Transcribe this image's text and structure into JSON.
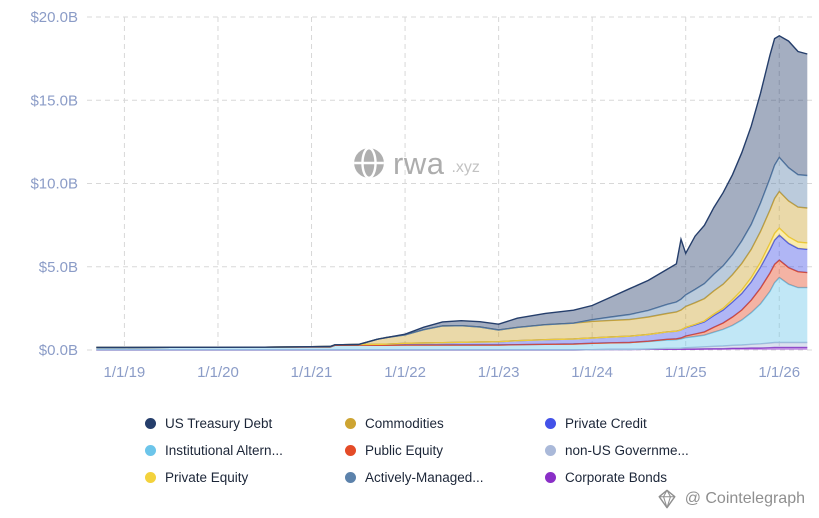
{
  "watermark": {
    "brand": "rwa",
    "suffix": ".xyz"
  },
  "attribution": {
    "text": "@ Cointelegraph"
  },
  "legend": {
    "items": [
      {
        "label": "US Treasury Debt",
        "color": "#253e6b"
      },
      {
        "label": "Commodities",
        "color": "#cda432"
      },
      {
        "label": "Private Credit",
        "color": "#4352e8"
      },
      {
        "label": "Institutional Altern...",
        "color": "#6cc5ea"
      },
      {
        "label": "Public Equity",
        "color": "#e44b27"
      },
      {
        "label": "non-US Governme...",
        "color": "#aab9d9"
      },
      {
        "label": "Private Equity",
        "color": "#f3d23c"
      },
      {
        "label": "Actively-Managed...",
        "color": "#5c82ab"
      },
      {
        "label": "Corporate Bonds",
        "color": "#8a2fc7"
      }
    ]
  },
  "chart_data": {
    "type": "area",
    "stacked": true,
    "title": "",
    "xlabel": "",
    "ylabel": "",
    "grid": "dashed",
    "legend_position": "bottom",
    "xlim": [
      2018.6,
      2026.35
    ],
    "ylim": [
      0,
      20
    ],
    "y_ticks": [
      {
        "value": 0,
        "label": "$0.0B"
      },
      {
        "value": 5,
        "label": "$5.0B"
      },
      {
        "value": 10,
        "label": "$10.0B"
      },
      {
        "value": 15,
        "label": "$15.0B"
      },
      {
        "value": 20,
        "label": "$20.0B"
      }
    ],
    "x_ticks": [
      {
        "value": 2019,
        "label": "1/1/19"
      },
      {
        "value": 2020,
        "label": "1/1/20"
      },
      {
        "value": 2021,
        "label": "1/1/21"
      },
      {
        "value": 2022,
        "label": "1/1/22"
      },
      {
        "value": 2023,
        "label": "1/1/23"
      },
      {
        "value": 2024,
        "label": "1/1/24"
      },
      {
        "value": 2025,
        "label": "1/1/25"
      },
      {
        "value": 2026,
        "label": "1/1/26"
      }
    ],
    "x": [
      2018.7,
      2019.0,
      2019.5,
      2020.0,
      2020.5,
      2021.0,
      2021.2,
      2021.25,
      2021.5,
      2021.7,
      2021.8,
      2022.0,
      2022.2,
      2022.4,
      2022.6,
      2022.8,
      2023.0,
      2023.2,
      2023.5,
      2023.8,
      2024.0,
      2024.2,
      2024.4,
      2024.6,
      2024.8,
      2024.9,
      2024.95,
      2025.0,
      2025.1,
      2025.2,
      2025.3,
      2025.4,
      2025.5,
      2025.6,
      2025.7,
      2025.8,
      2025.9,
      2025.95,
      2026.0,
      2026.1,
      2026.2,
      2026.3
    ],
    "unit": "USD billions",
    "series": [
      {
        "name": "Corporate Bonds",
        "color": "#8a2fc7",
        "values": [
          0,
          0,
          0,
          0,
          0,
          0,
          0,
          0,
          0,
          0,
          0,
          0,
          0,
          0,
          0,
          0,
          0,
          0,
          0,
          0,
          0.02,
          0.03,
          0.03,
          0.04,
          0.05,
          0.05,
          0.05,
          0.06,
          0.06,
          0.07,
          0.08,
          0.08,
          0.1,
          0.1,
          0.12,
          0.12,
          0.14,
          0.15,
          0.15,
          0.15,
          0.15,
          0.15
        ]
      },
      {
        "name": "non-US Governme...",
        "color": "#aab9d9",
        "values": [
          0,
          0,
          0,
          0,
          0,
          0,
          0,
          0,
          0,
          0,
          0,
          0,
          0,
          0,
          0,
          0,
          0,
          0,
          0,
          0,
          0,
          0,
          0,
          0.02,
          0.05,
          0.05,
          0.06,
          0.08,
          0.1,
          0.12,
          0.14,
          0.16,
          0.18,
          0.2,
          0.22,
          0.25,
          0.28,
          0.3,
          0.3,
          0.3,
          0.3,
          0.3
        ]
      },
      {
        "name": "Institutional Altern...",
        "color": "#6cc5ea",
        "values": [
          0.15,
          0.15,
          0.16,
          0.16,
          0.17,
          0.18,
          0.18,
          0.28,
          0.28,
          0.28,
          0.28,
          0.3,
          0.3,
          0.3,
          0.3,
          0.3,
          0.3,
          0.32,
          0.34,
          0.36,
          0.38,
          0.4,
          0.42,
          0.45,
          0.5,
          0.52,
          0.55,
          0.6,
          0.65,
          0.7,
          0.85,
          1.0,
          1.2,
          1.5,
          1.9,
          2.4,
          3.1,
          3.6,
          3.9,
          3.5,
          3.3,
          3.3
        ]
      },
      {
        "name": "Public Equity",
        "color": "#e44b27",
        "values": [
          0,
          0,
          0,
          0,
          0,
          0,
          0,
          0,
          0,
          0,
          0,
          0,
          0,
          0,
          0,
          0,
          0,
          0,
          0,
          0,
          0,
          0,
          0,
          0.02,
          0.04,
          0.05,
          0.06,
          0.1,
          0.15,
          0.2,
          0.3,
          0.38,
          0.5,
          0.6,
          0.75,
          0.95,
          1.1,
          1.1,
          1.05,
          1.0,
          0.95,
          0.9
        ]
      },
      {
        "name": "Private Credit",
        "color": "#4352e8",
        "values": [
          0,
          0,
          0,
          0,
          0,
          0.02,
          0.03,
          0.03,
          0.05,
          0.06,
          0.07,
          0.1,
          0.12,
          0.14,
          0.16,
          0.18,
          0.2,
          0.24,
          0.28,
          0.3,
          0.32,
          0.35,
          0.38,
          0.4,
          0.45,
          0.46,
          0.48,
          0.5,
          0.55,
          0.6,
          0.7,
          0.78,
          0.9,
          1.0,
          1.1,
          1.25,
          1.4,
          1.45,
          1.5,
          1.45,
          1.4,
          1.4
        ]
      },
      {
        "name": "Private Equity",
        "color": "#f3d23c",
        "values": [
          0,
          0,
          0,
          0,
          0,
          0,
          0,
          0,
          0,
          0,
          0,
          0,
          0,
          0,
          0,
          0,
          0,
          0,
          0,
          0,
          0,
          0,
          0,
          0,
          0,
          0,
          0,
          0.02,
          0.03,
          0.05,
          0.08,
          0.1,
          0.15,
          0.2,
          0.25,
          0.3,
          0.38,
          0.4,
          0.42,
          0.4,
          0.38,
          0.38
        ]
      },
      {
        "name": "Commodities",
        "color": "#cda432",
        "values": [
          0,
          0,
          0,
          0,
          0,
          0,
          0,
          0,
          0,
          0.3,
          0.4,
          0.5,
          0.8,
          1.0,
          1.0,
          0.9,
          0.7,
          0.8,
          0.9,
          0.95,
          1.0,
          1.0,
          1.0,
          1.05,
          1.1,
          1.15,
          1.2,
          1.25,
          1.3,
          1.35,
          1.4,
          1.45,
          1.5,
          1.6,
          1.7,
          1.85,
          2.0,
          2.1,
          2.2,
          2.15,
          2.1,
          2.1
        ]
      },
      {
        "name": "Actively-Managed...",
        "color": "#5c82ab",
        "values": [
          0,
          0,
          0,
          0,
          0,
          0,
          0,
          0,
          0,
          0,
          0,
          0,
          0,
          0,
          0,
          0,
          0,
          0,
          0,
          0,
          0.1,
          0.2,
          0.3,
          0.4,
          0.55,
          0.6,
          0.65,
          0.7,
          0.8,
          0.9,
          1.0,
          1.1,
          1.2,
          1.35,
          1.5,
          1.7,
          1.9,
          2.0,
          2.05,
          2.0,
          1.95,
          1.95
        ]
      },
      {
        "name": "US Treasury Debt",
        "color": "#253e6b",
        "values": [
          0,
          0,
          0,
          0,
          0,
          0,
          0,
          0,
          0,
          0,
          0,
          0.05,
          0.15,
          0.25,
          0.3,
          0.32,
          0.35,
          0.55,
          0.68,
          0.78,
          0.85,
          1.2,
          1.55,
          1.8,
          2.1,
          2.3,
          3.6,
          2.5,
          3.2,
          3.5,
          4.0,
          4.4,
          4.8,
          5.3,
          5.9,
          6.6,
          7.4,
          7.6,
          7.3,
          7.6,
          7.4,
          7.3
        ]
      }
    ]
  }
}
